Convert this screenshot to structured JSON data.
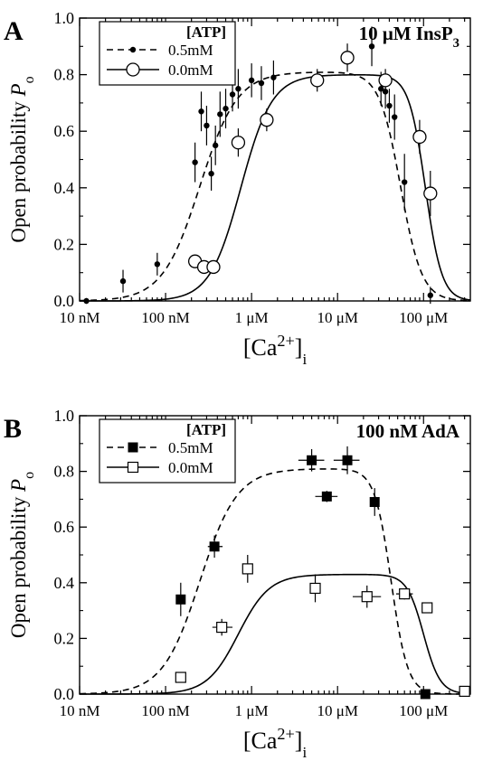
{
  "chart_data": [
    {
      "panel": "A",
      "type": "scatter",
      "title": "10 μM InsP3",
      "xlabel": "[Ca2+]i",
      "ylabel": "Open probability Po",
      "xscale": "log",
      "xlim": [
        1e-08,
        0.00035
      ],
      "ylim": [
        0,
        1.0
      ],
      "xticks": [
        1e-08,
        1e-07,
        1e-06,
        1e-05,
        0.0001
      ],
      "xticklabels": [
        "10 nM",
        "100 nM",
        "1 μM",
        "10 μM",
        "100 μM"
      ],
      "yticks": [
        0,
        0.2,
        0.4,
        0.6,
        0.8,
        1.0
      ],
      "yticklabels": [
        "0.0",
        "0.2",
        "0.4",
        "0.6",
        "0.8",
        "1.0"
      ],
      "legend": {
        "title": "[ATP]",
        "position": "top-left"
      },
      "series": [
        {
          "name": "0.5mM",
          "marker": "small-filled-circle",
          "line": "dashed",
          "x": [
            1.2e-08,
            3.2e-08,
            8e-08,
            2.2e-07,
            2.6e-07,
            3e-07,
            3.4e-07,
            3.8e-07,
            4.3e-07,
            5e-07,
            6e-07,
            7e-07,
            1e-06,
            1.3e-06,
            1.8e-06,
            2.5e-05,
            3.2e-05,
            3.6e-05,
            4e-05,
            4.6e-05,
            6e-05,
            0.00012
          ],
          "y": [
            0.0,
            0.07,
            0.13,
            0.49,
            0.67,
            0.62,
            0.45,
            0.55,
            0.66,
            0.68,
            0.73,
            0.75,
            0.78,
            0.77,
            0.79,
            0.9,
            0.75,
            0.74,
            0.69,
            0.65,
            0.42,
            0.02
          ],
          "xerr": [
            [
              0,
              0
            ],
            [
              0,
              0
            ],
            [
              0,
              0
            ],
            [
              0,
              0
            ],
            [
              0,
              0
            ],
            [
              0,
              0
            ],
            [
              0,
              0
            ],
            [
              0,
              0
            ],
            [
              0,
              0
            ],
            [
              0,
              0
            ],
            [
              0,
              0
            ],
            [
              0,
              0
            ],
            [
              0,
              0
            ],
            [
              0,
              0
            ],
            [
              0,
              0
            ],
            [
              0,
              0
            ],
            [
              0,
              0
            ],
            [
              0,
              0
            ],
            [
              0,
              0
            ],
            [
              0,
              0
            ],
            [
              0,
              0
            ],
            [
              0,
              0
            ]
          ],
          "yerr": [
            0.01,
            0.04,
            0.04,
            0.07,
            0.07,
            0.07,
            0.06,
            0.07,
            0.08,
            0.07,
            0.06,
            0.07,
            0.06,
            0.06,
            0.06,
            0.07,
            0.06,
            0.06,
            0.06,
            0.08,
            0.1,
            0.03
          ]
        },
        {
          "name": "0.0mM",
          "marker": "open-circle",
          "line": "solid",
          "x": [
            2.2e-07,
            2.8e-07,
            3.6e-07,
            7e-07,
            1.5e-06,
            5.8e-06,
            1.3e-05,
            3.6e-05,
            9e-05,
            0.00012
          ],
          "y": [
            0.14,
            0.12,
            0.12,
            0.56,
            0.64,
            0.78,
            0.86,
            0.78,
            0.58,
            0.38
          ],
          "xerr": [
            [
              0,
              0
            ],
            [
              0,
              0
            ],
            [
              0,
              0
            ],
            [
              0,
              0
            ],
            [
              0,
              0
            ],
            [
              0,
              0
            ],
            [
              0,
              0
            ],
            [
              0,
              0
            ],
            [
              0,
              0
            ],
            [
              0,
              0
            ]
          ],
          "yerr": [
            0,
            0,
            0,
            0.05,
            0.04,
            0.04,
            0.05,
            0.04,
            0.06,
            0.08
          ]
        }
      ],
      "curves": [
        {
          "name": "0.5mM",
          "style": "dashed",
          "pmax": 0.81,
          "kact": 2.5e-07,
          "hact": 2.0,
          "kinh": 5.4e-05,
          "hinh": 3.5
        },
        {
          "name": "0.0mM",
          "style": "solid",
          "pmax": 0.8,
          "kact": 7.5e-07,
          "hact": 2.4,
          "kinh": 0.000105,
          "hinh": 4.5
        }
      ]
    },
    {
      "panel": "B",
      "type": "scatter",
      "title": "100 nM AdA",
      "xlabel": "[Ca2+]i",
      "ylabel": "Open probability Po",
      "xscale": "log",
      "xlim": [
        1e-08,
        0.00035
      ],
      "ylim": [
        0,
        1.0
      ],
      "xticks": [
        1e-08,
        1e-07,
        1e-06,
        1e-05,
        0.0001
      ],
      "xticklabels": [
        "10 nM",
        "100 nM",
        "1 μM",
        "10 μM",
        "100 μM"
      ],
      "yticks": [
        0,
        0.2,
        0.4,
        0.6,
        0.8,
        1.0
      ],
      "yticklabels": [
        "0.0",
        "0.2",
        "0.4",
        "0.6",
        "0.8",
        "1.0"
      ],
      "legend": {
        "title": "[ATP]",
        "position": "top-left"
      },
      "series": [
        {
          "name": "0.5mM",
          "marker": "filled-square",
          "line": "dashed",
          "x": [
            1.5e-07,
            3.7e-07,
            5e-06,
            7.5e-06,
            1.3e-05,
            2.7e-05,
            0.000105
          ],
          "y": [
            0.34,
            0.53,
            0.84,
            0.71,
            0.84,
            0.69,
            0.0
          ],
          "xerr": [
            [
              0,
              0
            ],
            [
              6e-08,
              9e-08
            ],
            [
              1.5e-06,
              2e-06
            ],
            [
              2e-06,
              2.5e-06
            ],
            [
              4e-06,
              5e-06
            ],
            [
              0,
              0
            ],
            [
              0,
              0
            ]
          ],
          "yerr": [
            0.06,
            0.04,
            0.04,
            0.02,
            0.05,
            0.05,
            0
          ]
        },
        {
          "name": "0.0mM",
          "marker": "open-square",
          "line": "solid",
          "x": [
            1.5e-07,
            4.5e-07,
            9e-07,
            5.5e-06,
            2.2e-05,
            6e-05,
            0.00011,
            0.0003
          ],
          "y": [
            0.06,
            0.24,
            0.45,
            0.38,
            0.35,
            0.36,
            0.31,
            0.01
          ],
          "xerr": [
            [
              0,
              0
            ],
            [
              1e-07,
              1.5e-07
            ],
            [
              0,
              0
            ],
            [
              0,
              0
            ],
            [
              7e-06,
              1e-05
            ],
            [
              1.2e-05,
              1.5e-05
            ],
            [
              0,
              0
            ],
            [
              0,
              0
            ]
          ],
          "yerr": [
            0,
            0.03,
            0.05,
            0.05,
            0.04,
            0.02,
            0,
            0
          ]
        }
      ],
      "curves": [
        {
          "name": "0.5mM",
          "style": "dashed",
          "pmax": 0.81,
          "kact": 2.5e-07,
          "hact": 2.0,
          "kinh": 4.2e-05,
          "hinh": 4.5
        },
        {
          "name": "0.0mM",
          "style": "solid",
          "pmax": 0.43,
          "kact": 7e-07,
          "hact": 2.4,
          "kinh": 0.0001,
          "hinh": 4.5
        }
      ]
    }
  ]
}
